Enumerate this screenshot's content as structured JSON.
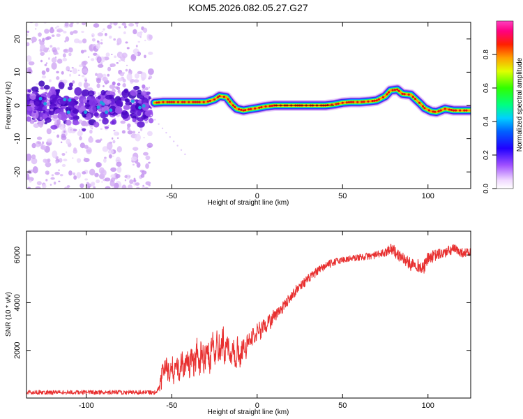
{
  "chart_data": [
    {
      "type": "heatmap",
      "title": "KOM5.2026.082.05.27.G27",
      "xlabel": "Height of straight line (km)",
      "ylabel": "Frequency (Hz)",
      "xlim": [
        -135,
        125
      ],
      "ylim": [
        -25,
        25
      ],
      "x_ticks": [
        -100,
        -50,
        0,
        50,
        100
      ],
      "y_ticks": [
        -20,
        -10,
        0,
        10,
        20
      ],
      "x_tick_labels": [
        "-100",
        "-50",
        "0",
        "50",
        "100"
      ],
      "y_tick_labels": [
        "-20",
        "-10",
        "0",
        "10",
        "20"
      ],
      "colorbar": {
        "label": "Normalized spectral amplitude",
        "range": [
          0,
          1
        ],
        "ticks": [
          0.0,
          0.2,
          0.4,
          0.6,
          0.8
        ],
        "tick_labels": [
          "0.0",
          "0.2",
          "0.4",
          "0.6",
          "0.8"
        ]
      },
      "ridge": {
        "name": "dominant frequency",
        "x": [
          -60,
          -55,
          -50,
          -40,
          -30,
          -25,
          -22,
          -18,
          -15,
          -12,
          -8,
          -5,
          0,
          5,
          10,
          20,
          30,
          40,
          45,
          50,
          55,
          60,
          65,
          70,
          75,
          78,
          82,
          85,
          90,
          95,
          98,
          102,
          105,
          110,
          115,
          120,
          125
        ],
        "y": [
          0.8,
          1.0,
          1.0,
          1.0,
          1.0,
          1.8,
          2.8,
          2.5,
          0.5,
          -1.0,
          -1.5,
          -1.2,
          -0.8,
          -0.3,
          0,
          0,
          0,
          0,
          0.3,
          0.8,
          1.0,
          1.0,
          1.2,
          1.5,
          2.8,
          4.5,
          4.8,
          3.5,
          3.2,
          0.8,
          -0.8,
          -1.8,
          -2.0,
          -1.0,
          -1.5,
          -1.5,
          -1.5
        ]
      },
      "noise_region": {
        "x_range": [
          -135,
          -62
        ],
        "description": "scattered low amplitude"
      }
    },
    {
      "type": "line",
      "xlabel": "Height of straight line (km)",
      "ylabel": "SNR (10 * v/v)",
      "xlim": [
        -135,
        125
      ],
      "ylim": [
        0,
        7000
      ],
      "x_ticks": [
        -100,
        -50,
        0,
        50,
        100
      ],
      "y_ticks": [
        2000,
        4000,
        6000
      ],
      "x_tick_labels": [
        "-100",
        "-50",
        "0",
        "50",
        "100"
      ],
      "y_tick_labels": [
        "2000",
        "4000",
        "6000"
      ],
      "series": [
        {
          "name": "SNR",
          "color": "#e83030",
          "envelope_x": [
            -135,
            -100,
            -75,
            -60,
            -58,
            -56,
            -55,
            -53,
            -50,
            -45,
            -40,
            -35,
            -30,
            -25,
            -20,
            -15,
            -10,
            -5,
            0,
            5,
            10,
            15,
            20,
            25,
            30,
            35,
            40,
            45,
            50,
            55,
            60,
            65,
            70,
            75,
            78,
            80,
            82,
            85,
            88,
            90,
            92,
            95,
            97,
            100,
            105,
            110,
            115,
            120,
            125
          ],
          "envelope_y": [
            150,
            150,
            150,
            150,
            250,
            700,
            1500,
            1200,
            1100,
            1300,
            1500,
            1700,
            1800,
            2000,
            2200,
            1800,
            1900,
            2300,
            2800,
            3100,
            3400,
            3800,
            4300,
            4700,
            5000,
            5300,
            5550,
            5700,
            5800,
            5850,
            5900,
            5950,
            6000,
            6100,
            6300,
            6200,
            6000,
            5900,
            5700,
            5600,
            5700,
            5500,
            5400,
            5850,
            6000,
            6100,
            6250,
            6100,
            6100
          ],
          "noise": [
            60,
            60,
            60,
            70,
            300,
            600,
            500,
            550,
            650,
            700,
            700,
            750,
            800,
            850,
            900,
            800,
            650,
            550,
            450,
            400,
            380,
            350,
            330,
            320,
            300,
            280,
            260,
            240,
            220,
            220,
            220,
            230,
            240,
            260,
            350,
            400,
            350,
            380,
            400,
            420,
            400,
            420,
            450,
            400,
            380,
            350,
            330,
            300,
            280
          ]
        }
      ]
    }
  ]
}
